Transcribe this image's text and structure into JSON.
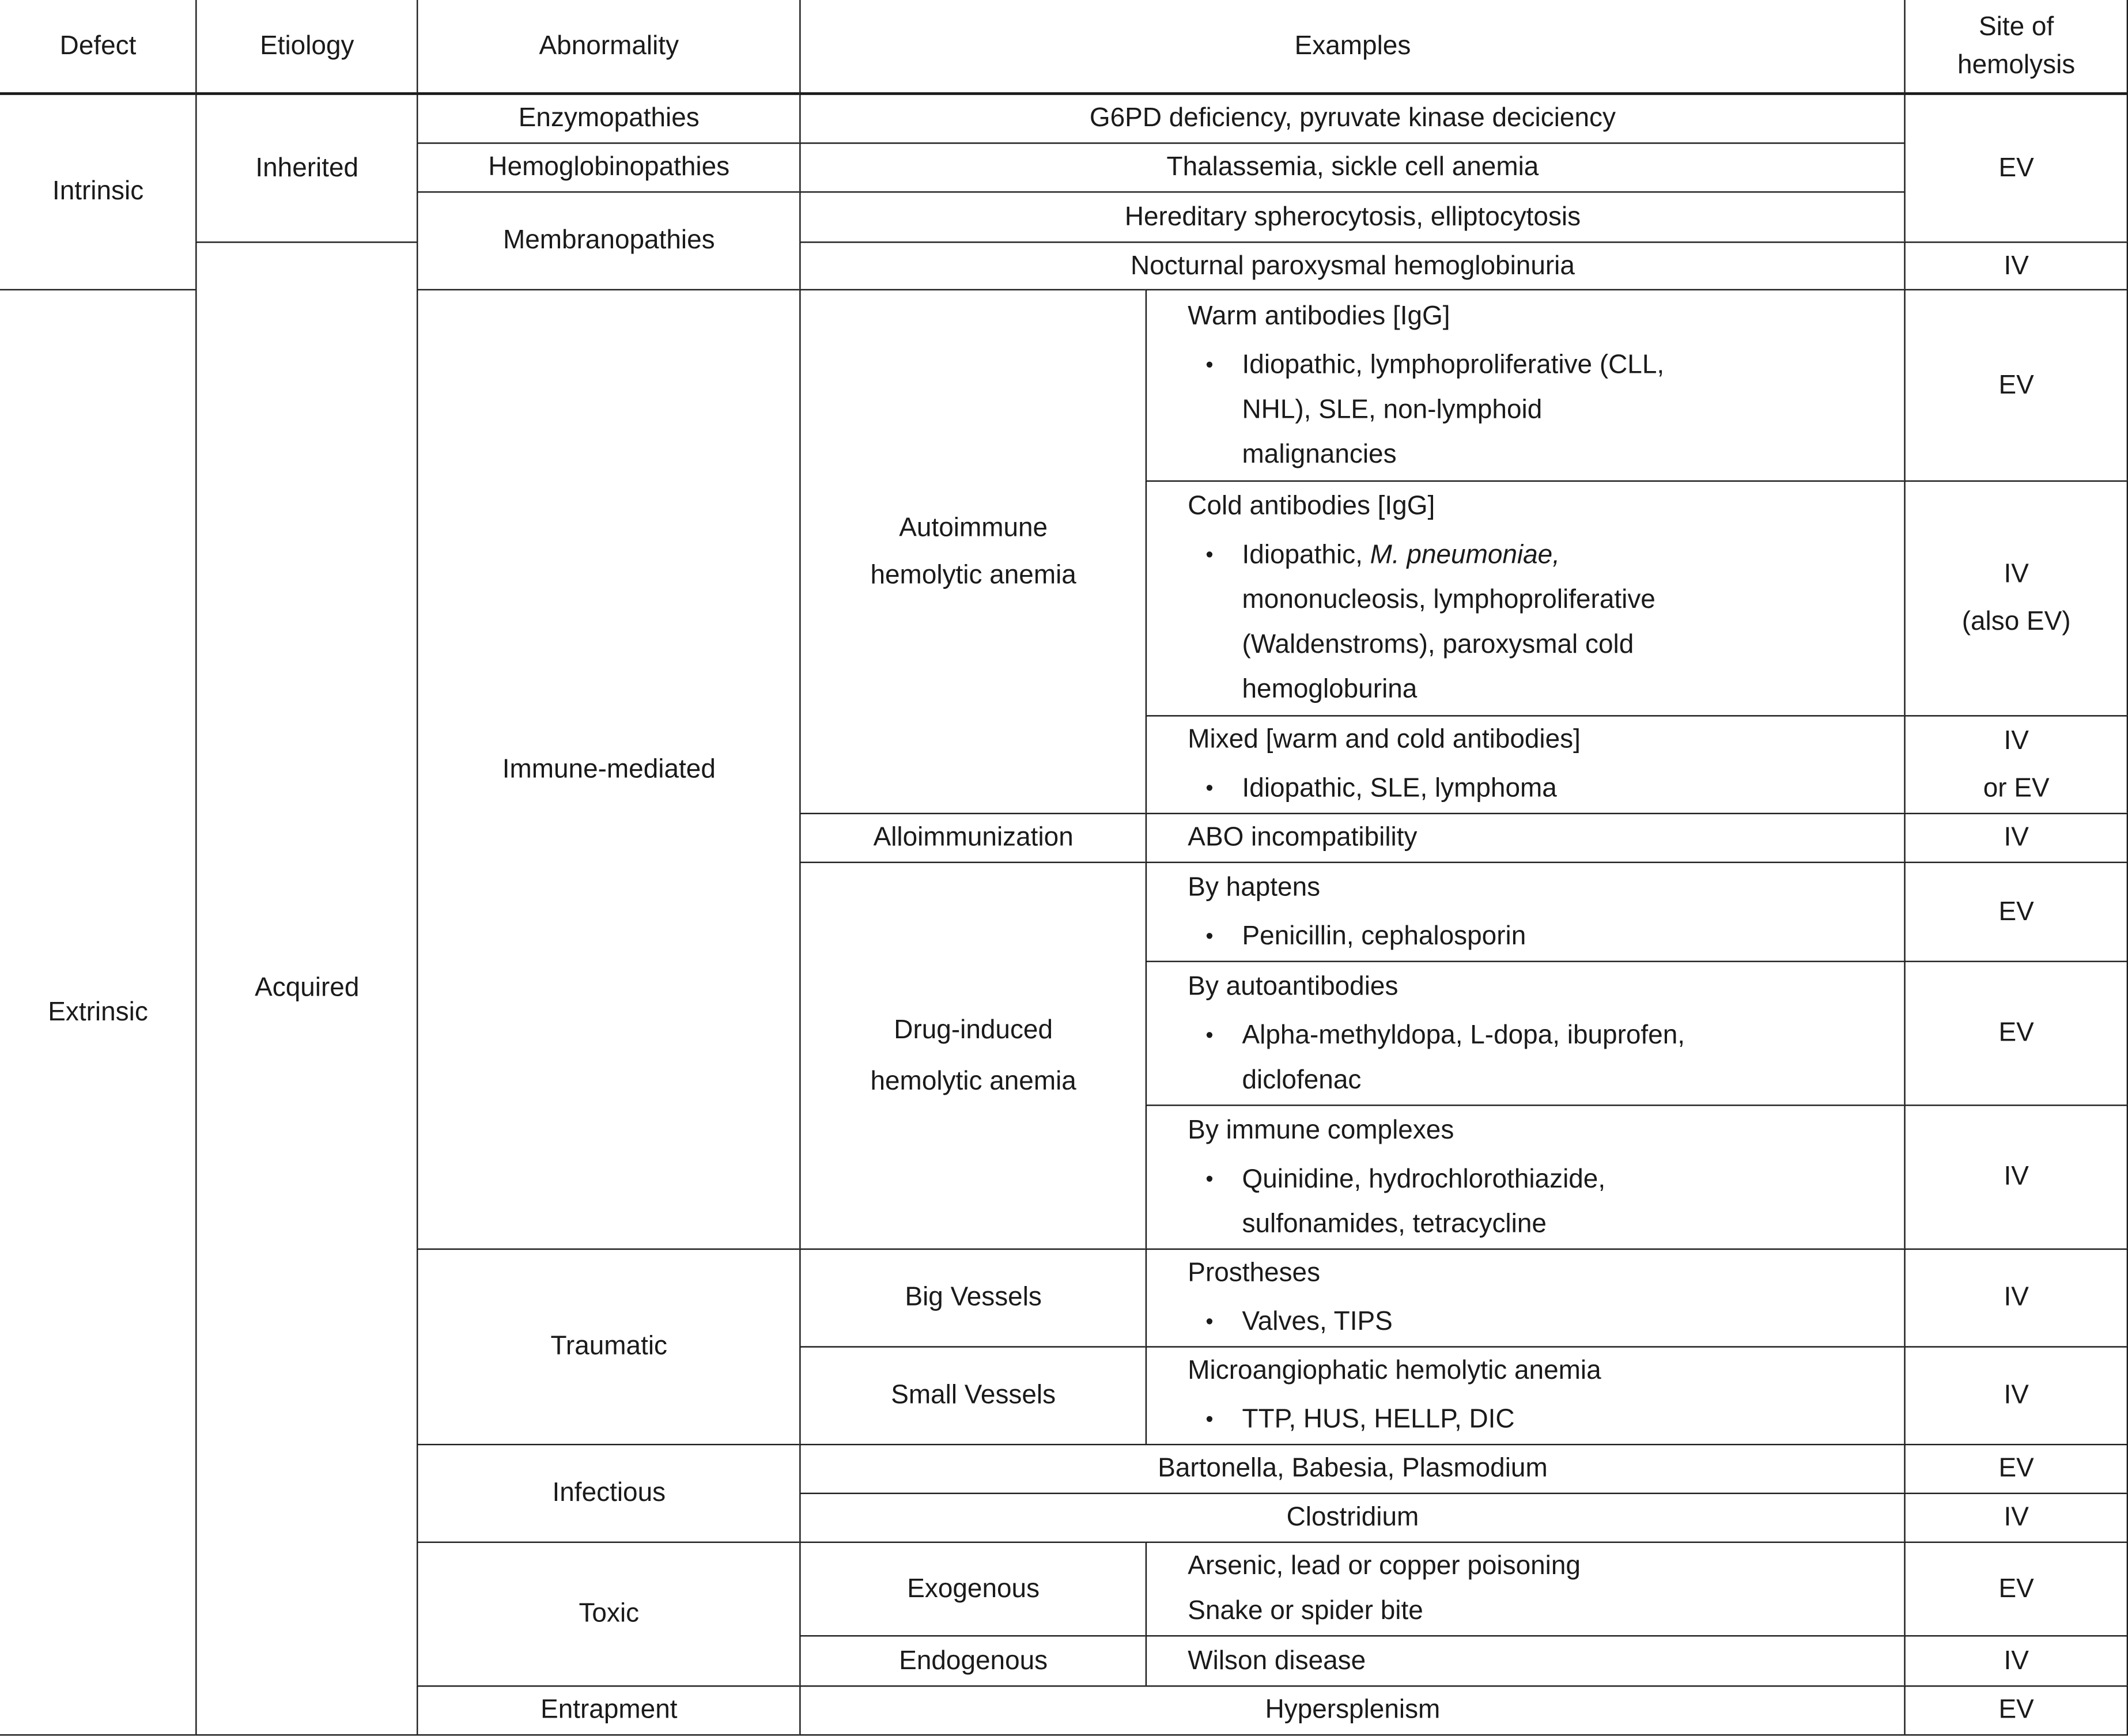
{
  "header": {
    "defect": "Defect",
    "etiology": "Etiology",
    "abnormality": "Abnormality",
    "examples": "Examples",
    "site_line1": "Site of",
    "site_line2": "hemolysis"
  },
  "defects": {
    "intrinsic": "Intrinsic",
    "extrinsic": "Extrinsic"
  },
  "etiologies": {
    "inherited": "Inherited",
    "acquired": "Acquired"
  },
  "abnormalities": {
    "enzymopathies": "Enzymopathies",
    "hemoglobinopathies": "Hemoglobinopathies",
    "membranopathies": "Membranopathies",
    "immune": "Immune-mediated",
    "traumatic": "Traumatic",
    "infectious": "Infectious",
    "toxic": "Toxic",
    "entrapment": "Entrapment"
  },
  "subtypes": {
    "aiha": [
      "Autoimmune",
      "hemolytic anemia"
    ],
    "allo": "Alloimmunization",
    "drug": [
      "Drug-induced",
      "hemolytic anemia"
    ],
    "big": "Big Vessels",
    "small": "Small Vessels",
    "exo": "Exogenous",
    "endo": "Endogenous"
  },
  "examples": {
    "g6pd": "G6PD deficiency, pyruvate kinase deciciency",
    "thal": "Thalassemia, sickle cell anemia",
    "hs": "Hereditary spherocytosis, elliptocytosis",
    "pnh": "Nocturnal paroxysmal hemoglobinuria",
    "warm": {
      "heading": "Warm antibodies [IgG]",
      "lines": [
        "Idiopathic, lymphoproliferative (CLL,",
        "NHL), SLE, non-lymphoid",
        "malignancies"
      ]
    },
    "cold": {
      "heading": "Cold antibodies [IgG]",
      "line1_plain": "Idiopathic, ",
      "line1_italic": "M. pneumoniae,",
      "lines": [
        "mononucleosis, lymphoproliferative",
        "(Waldenstroms), paroxysmal cold",
        "hemogloburina"
      ]
    },
    "mixed": {
      "heading": "Mixed [warm and cold antibodies]",
      "lines": [
        "Idiopathic, SLE, lymphoma"
      ]
    },
    "abo": "ABO incompatibility",
    "haptens": {
      "heading": "By haptens",
      "lines": [
        "Penicillin, cephalosporin"
      ]
    },
    "autoab": {
      "heading": "By autoantibodies",
      "lines": [
        "Alpha-methyldopa, L-dopa, ibuprofen,",
        "diclofenac"
      ]
    },
    "complex": {
      "heading": "By immune complexes",
      "lines": [
        "Quinidine, hydrochlorothiazide,",
        "sulfonamides, tetracycline"
      ]
    },
    "prostheses": {
      "heading": "Prostheses",
      "lines": [
        "Valves, TIPS"
      ]
    },
    "micro": {
      "heading": "Microangiophatic hemolytic anemia",
      "lines": [
        "TTP, HUS, HELLP, DIC"
      ]
    },
    "bartonella": "Bartonella, Babesia, Plasmodium",
    "clostridium": "Clostridium",
    "arsenic": [
      "Arsenic, lead or copper poisoning",
      "Snake or spider bite"
    ],
    "wilson": "Wilson disease",
    "hypersplenism": "Hypersplenism"
  },
  "bullet": "•",
  "sites": {
    "inherited": "EV",
    "pnh": "IV",
    "warm": "EV",
    "cold": [
      "IV",
      "(also EV)"
    ],
    "mixed": [
      "IV",
      "or EV"
    ],
    "abo": "IV",
    "haptens": "EV",
    "autoab": "EV",
    "complex": "IV",
    "big": "IV",
    "small": "IV",
    "bartonella": "EV",
    "clostridium": "IV",
    "exo": "EV",
    "endo": "IV",
    "entrapment": "EV"
  }
}
